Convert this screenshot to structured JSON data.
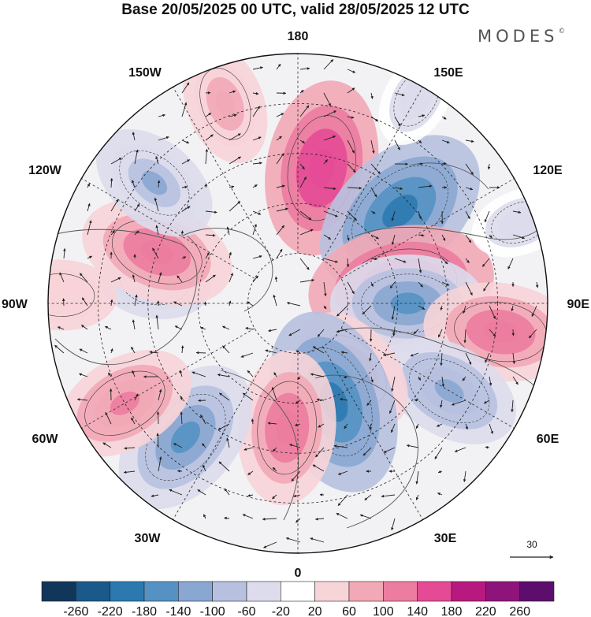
{
  "title": "Base 20/05/2025 00 UTC, valid 28/05/2025 12 UTC",
  "brand": "MODES",
  "brand_mark": "©",
  "map": {
    "projection": "north polar stereographic",
    "longitude_labels": {
      "top": "180",
      "bottom": "0",
      "left": "90W",
      "right": "90E",
      "upper_left_1": "150W",
      "upper_left_2": "120W",
      "upper_right_1": "150E",
      "upper_right_2": "120E",
      "lower_left_1": "60W",
      "lower_left_2": "30W",
      "lower_right_1": "60E",
      "lower_right_2": "30E"
    },
    "reference_vector": "30",
    "anomaly_cells": [
      {
        "lon": 170,
        "r": 0.55,
        "value": 180
      },
      {
        "lon": 132,
        "r": 0.55,
        "value": -200
      },
      {
        "lon": 100,
        "r": 0.42,
        "value": 200
      },
      {
        "lon": 90,
        "r": 0.44,
        "value": -140
      },
      {
        "lon": 82,
        "r": 0.82,
        "value": 140
      },
      {
        "lon": 60,
        "r": 0.7,
        "value": -120
      },
      {
        "lon": 40,
        "r": 0.35,
        "value": 100
      },
      {
        "lon": 20,
        "r": 0.42,
        "value": -200
      },
      {
        "lon": 355,
        "r": 0.5,
        "value": 140
      },
      {
        "lon": 320,
        "r": 0.7,
        "value": -160
      },
      {
        "lon": 300,
        "r": 0.8,
        "value": 120
      },
      {
        "lon": 262,
        "r": 0.58,
        "value": -60
      },
      {
        "lon": 250,
        "r": 0.6,
        "value": 140
      },
      {
        "lon": 268,
        "r": 0.95,
        "value": 60
      },
      {
        "lon": 230,
        "r": 0.75,
        "value": -100
      },
      {
        "lon": 200,
        "r": 0.85,
        "value": 80
      },
      {
        "lon": 150,
        "r": 0.95,
        "value": -40
      },
      {
        "lon": 110,
        "r": 0.95,
        "value": -40
      }
    ]
  },
  "colorbar": {
    "labels": [
      "-260",
      "-220",
      "-180",
      "-140",
      "-100",
      "-60",
      "-20",
      "20",
      "60",
      "100",
      "140",
      "180",
      "220",
      "260"
    ],
    "colors": [
      "#12365a",
      "#1a5a8a",
      "#2c79b0",
      "#5592c3",
      "#8aa7d2",
      "#b7c1df",
      "#dcdcec",
      "#ffffff",
      "#f7d4d8",
      "#f2a8b6",
      "#ec7ca0",
      "#e44a96",
      "#b8197f",
      "#8e1479",
      "#5d0e6c"
    ]
  }
}
